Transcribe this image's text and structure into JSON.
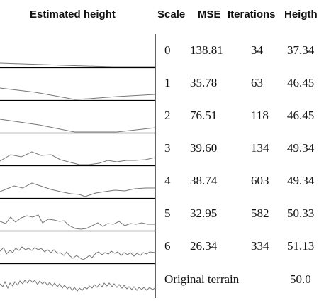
{
  "headers": {
    "estimated_height": "Estimated height",
    "scale": "Scale",
    "mse": "MSE",
    "iterations": "Iterations",
    "height": "Heigth"
  },
  "rows": [
    {
      "scale": "0",
      "mse": "138.81",
      "iterations": "34",
      "height": "37.34"
    },
    {
      "scale": "1",
      "mse": "35.78",
      "iterations": "63",
      "height": "46.45"
    },
    {
      "scale": "2",
      "mse": "76.51",
      "iterations": "118",
      "height": "46.45"
    },
    {
      "scale": "3",
      "mse": "39.60",
      "iterations": "134",
      "height": "49.34"
    },
    {
      "scale": "4",
      "mse": "38.74",
      "iterations": "603",
      "height": "49.34"
    },
    {
      "scale": "5",
      "mse": "32.95",
      "iterations": "582",
      "height": "50.33"
    },
    {
      "scale": "6",
      "mse": "26.34",
      "iterations": "334",
      "height": "51.13"
    }
  ],
  "original": {
    "label": "Original terrain",
    "height": "50.0"
  }
}
